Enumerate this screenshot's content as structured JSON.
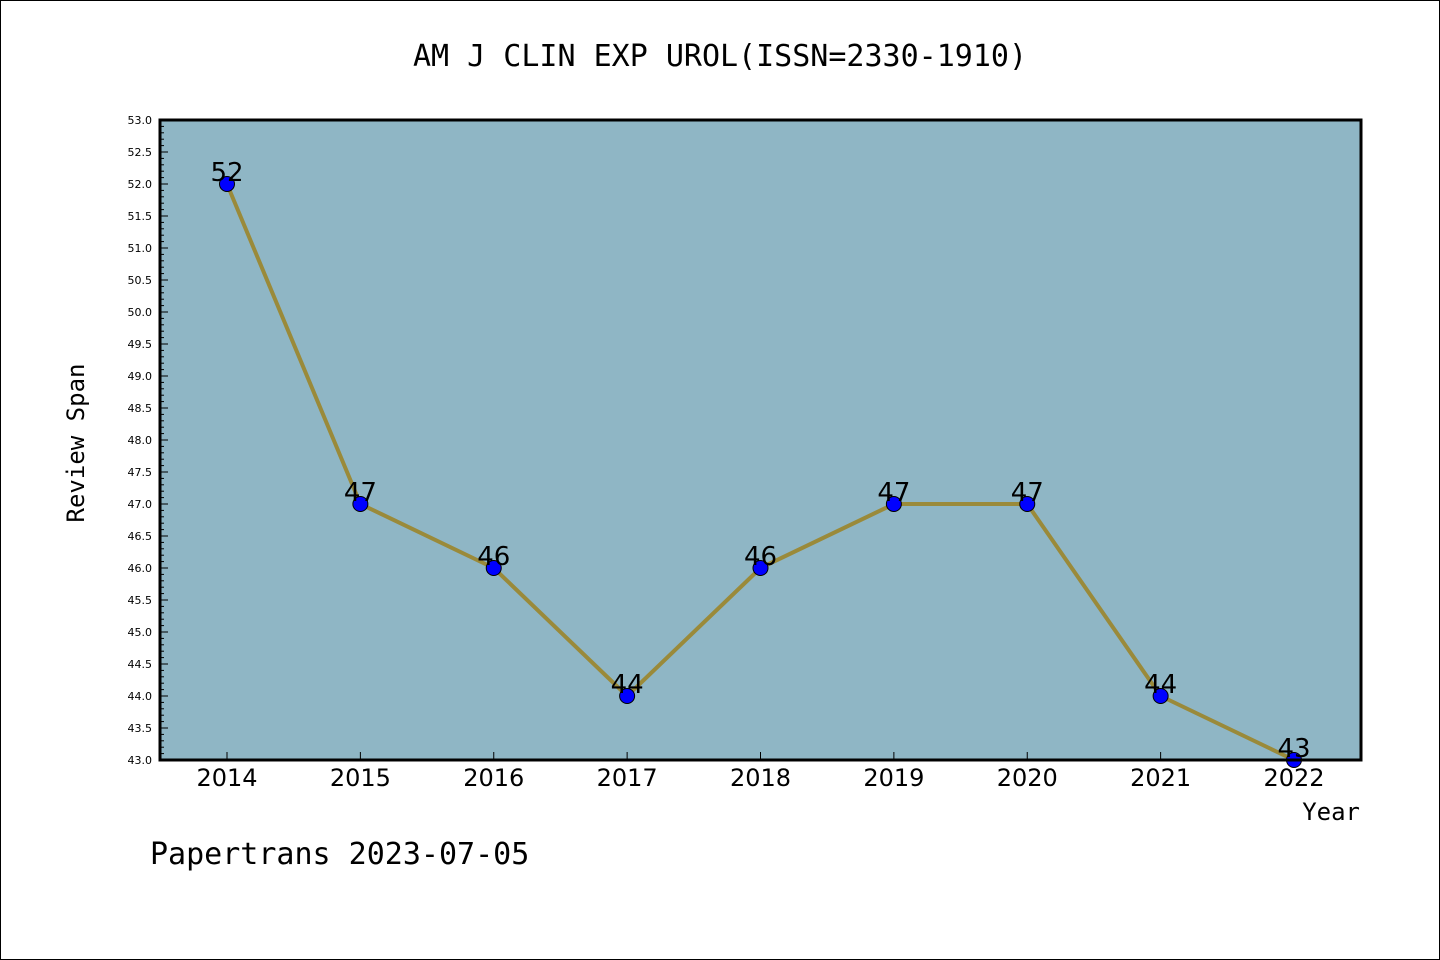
{
  "chart_data": {
    "type": "line",
    "title": "AM J CLIN EXP UROL(ISSN=2330-1910)",
    "xlabel": "Year",
    "ylabel": "Review Span",
    "categories": [
      "2014",
      "2015",
      "2016",
      "2017",
      "2018",
      "2019",
      "2020",
      "2021",
      "2022"
    ],
    "series": [
      {
        "values": [
          52,
          47,
          46,
          44,
          46,
          47,
          47,
          44,
          43
        ]
      }
    ],
    "data_labels": [
      "52",
      "47",
      "46",
      "44",
      "46",
      "47",
      "47",
      "44",
      "43"
    ],
    "ylim": [
      43.0,
      53.0
    ],
    "y_ticks": [
      "43.0",
      "43.5",
      "44.0",
      "44.5",
      "45.0",
      "45.5",
      "46.0",
      "46.5",
      "47.0",
      "47.5",
      "48.0",
      "48.5",
      "49.0",
      "49.5",
      "50.0",
      "50.5",
      "51.0",
      "51.5",
      "52.0",
      "52.5",
      "53.0"
    ],
    "grid": false,
    "colors": {
      "plot_background": "#8fb6c5",
      "line": "#9a8a3a",
      "marker": "#0000ff"
    }
  },
  "footer": {
    "text": "Papertrans 2023-07-05"
  }
}
